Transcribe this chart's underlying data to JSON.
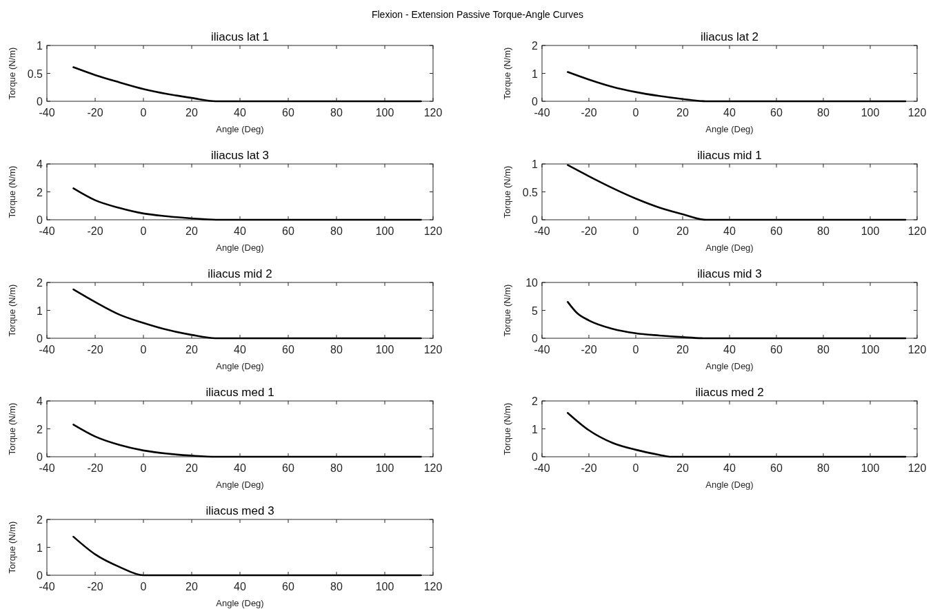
{
  "chart_data": [
    {
      "type": "other",
      "title": "Flexion - Extension Passive Torque-Angle Curves"
    },
    {
      "type": "line",
      "title": "iliacus lat 1",
      "xlabel": "Angle (Deg)",
      "ylabel": "Torque (N/m)",
      "color": "#000000",
      "x": [
        -29,
        -20,
        -10,
        0,
        10,
        20,
        30,
        115
      ],
      "values": [
        0.61,
        0.47,
        0.34,
        0.22,
        0.13,
        0.06,
        0,
        0
      ],
      "xlim": [
        -40,
        120
      ],
      "ylim": [
        0,
        1
      ],
      "xticks": [
        -40,
        -20,
        0,
        20,
        40,
        60,
        80,
        100,
        120
      ],
      "yticks": [
        0,
        0.5,
        1
      ]
    },
    {
      "type": "line",
      "title": "iliacus lat 2",
      "xlabel": "Angle (Deg)",
      "ylabel": "Torque (N/m)",
      "color": "#000000",
      "x": [
        -29,
        -20,
        -10,
        0,
        10,
        20,
        30,
        115
      ],
      "values": [
        1.05,
        0.78,
        0.52,
        0.33,
        0.19,
        0.08,
        0,
        0
      ],
      "xlim": [
        -40,
        120
      ],
      "ylim": [
        0,
        2
      ],
      "xticks": [
        -40,
        -20,
        0,
        20,
        40,
        60,
        80,
        100,
        120
      ],
      "yticks": [
        0,
        1,
        2
      ]
    },
    {
      "type": "line",
      "title": "iliacus lat 3",
      "xlabel": "Angle (Deg)",
      "ylabel": "Torque (N/m)",
      "color": "#000000",
      "x": [
        -29,
        -20,
        -10,
        0,
        10,
        20,
        30,
        115
      ],
      "values": [
        2.25,
        1.4,
        0.85,
        0.45,
        0.25,
        0.1,
        0,
        0
      ],
      "xlim": [
        -40,
        120
      ],
      "ylim": [
        0,
        4
      ],
      "xticks": [
        -40,
        -20,
        0,
        20,
        40,
        60,
        80,
        100,
        120
      ],
      "yticks": [
        0,
        2,
        4
      ]
    },
    {
      "type": "line",
      "title": "iliacus mid 1",
      "xlabel": "Angle (Deg)",
      "ylabel": "Torque (N/m)",
      "color": "#000000",
      "x": [
        -29,
        -20,
        -10,
        0,
        10,
        20,
        30,
        115
      ],
      "values": [
        0.98,
        0.78,
        0.57,
        0.38,
        0.22,
        0.1,
        0,
        0
      ],
      "xlim": [
        -40,
        120
      ],
      "ylim": [
        0,
        1
      ],
      "xticks": [
        -40,
        -20,
        0,
        20,
        40,
        60,
        80,
        100,
        120
      ],
      "yticks": [
        0,
        0.5,
        1
      ]
    },
    {
      "type": "line",
      "title": "iliacus mid 2",
      "xlabel": "Angle (Deg)",
      "ylabel": "Torque (N/m)",
      "color": "#000000",
      "x": [
        -29,
        -20,
        -10,
        0,
        10,
        20,
        30,
        115
      ],
      "values": [
        1.75,
        1.3,
        0.85,
        0.55,
        0.3,
        0.12,
        0,
        0
      ],
      "xlim": [
        -40,
        120
      ],
      "ylim": [
        0,
        2
      ],
      "xticks": [
        -40,
        -20,
        0,
        20,
        40,
        60,
        80,
        100,
        120
      ],
      "yticks": [
        0,
        1,
        2
      ]
    },
    {
      "type": "line",
      "title": "iliacus mid 3",
      "xlabel": "Angle (Deg)",
      "ylabel": "Torque (N/m)",
      "color": "#000000",
      "x": [
        -29,
        -25,
        -20,
        -10,
        0,
        10,
        20,
        30,
        115
      ],
      "values": [
        6.5,
        4.5,
        3.2,
        1.7,
        0.9,
        0.5,
        0.2,
        0,
        0
      ],
      "xlim": [
        -40,
        120
      ],
      "ylim": [
        0,
        10
      ],
      "xticks": [
        -40,
        -20,
        0,
        20,
        40,
        60,
        80,
        100,
        120
      ],
      "yticks": [
        0,
        5,
        10
      ]
    },
    {
      "type": "line",
      "title": "iliacus med 1",
      "xlabel": "Angle (Deg)",
      "ylabel": "Torque (N/m)",
      "color": "#000000",
      "x": [
        -29,
        -20,
        -10,
        0,
        10,
        20,
        30,
        115
      ],
      "values": [
        2.3,
        1.45,
        0.85,
        0.45,
        0.22,
        0.08,
        0,
        0
      ],
      "xlim": [
        -40,
        120
      ],
      "ylim": [
        0,
        4
      ],
      "xticks": [
        -40,
        -20,
        0,
        20,
        40,
        60,
        80,
        100,
        120
      ],
      "yticks": [
        0,
        2,
        4
      ]
    },
    {
      "type": "line",
      "title": "iliacus med 2",
      "xlabel": "Angle (Deg)",
      "ylabel": "Torque (N/m)",
      "color": "#000000",
      "x": [
        -29,
        -20,
        -10,
        0,
        10,
        15,
        115
      ],
      "values": [
        1.57,
        0.95,
        0.5,
        0.25,
        0.07,
        0,
        0
      ],
      "xlim": [
        -40,
        120
      ],
      "ylim": [
        0,
        2
      ],
      "xticks": [
        -40,
        -20,
        0,
        20,
        40,
        60,
        80,
        100,
        120
      ],
      "yticks": [
        0,
        1,
        2
      ]
    },
    {
      "type": "line",
      "title": "iliacus med 3",
      "xlabel": "Angle (Deg)",
      "ylabel": "Torque (N/m)",
      "color": "#000000",
      "x": [
        -29,
        -20,
        -10,
        0,
        115
      ],
      "values": [
        1.38,
        0.75,
        0.3,
        0,
        0
      ],
      "xlim": [
        -40,
        120
      ],
      "ylim": [
        0,
        2
      ],
      "xticks": [
        -40,
        -20,
        0,
        20,
        40,
        60,
        80,
        100,
        120
      ],
      "yticks": [
        0,
        1,
        2
      ]
    }
  ]
}
